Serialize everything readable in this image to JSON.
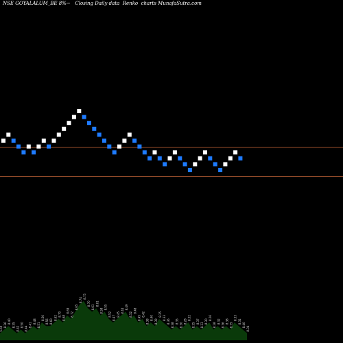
{
  "chart_data": {
    "type": "renko",
    "title": "NSE GOYALALUM_BE 8%~   Closing Daily data  Renko  charts MunafaSutra.com",
    "up_color": "#ffffff",
    "down_color": "#1e7bff",
    "level_line_color": "#a0522d",
    "volume_fill_color": "#0a3a0a",
    "background": "#000000",
    "reference_levels": [
      8.45,
      8.2
    ],
    "bricks": [
      {
        "dir": "up",
        "close": 8.5
      },
      {
        "dir": "up",
        "close": 8.55
      },
      {
        "dir": "down",
        "close": 8.5
      },
      {
        "dir": "down",
        "close": 8.45
      },
      {
        "dir": "down",
        "close": 8.4
      },
      {
        "dir": "up",
        "close": 8.45
      },
      {
        "dir": "down",
        "close": 8.4
      },
      {
        "dir": "up",
        "close": 8.45
      },
      {
        "dir": "up",
        "close": 8.5
      },
      {
        "dir": "down",
        "close": 8.45
      },
      {
        "dir": "up",
        "close": 8.5
      },
      {
        "dir": "up",
        "close": 8.55
      },
      {
        "dir": "up",
        "close": 8.6
      },
      {
        "dir": "up",
        "close": 8.65
      },
      {
        "dir": "up",
        "close": 8.7
      },
      {
        "dir": "up",
        "close": 8.75
      },
      {
        "dir": "down",
        "close": 8.7
      },
      {
        "dir": "down",
        "close": 8.65
      },
      {
        "dir": "down",
        "close": 8.6
      },
      {
        "dir": "down",
        "close": 8.55
      },
      {
        "dir": "down",
        "close": 8.5
      },
      {
        "dir": "down",
        "close": 8.45
      },
      {
        "dir": "down",
        "close": 8.4
      },
      {
        "dir": "up",
        "close": 8.45
      },
      {
        "dir": "up",
        "close": 8.5
      },
      {
        "dir": "up",
        "close": 8.55
      },
      {
        "dir": "down",
        "close": 8.5
      },
      {
        "dir": "down",
        "close": 8.45
      },
      {
        "dir": "down",
        "close": 8.4
      },
      {
        "dir": "down",
        "close": 8.35
      },
      {
        "dir": "up",
        "close": 8.4
      },
      {
        "dir": "down",
        "close": 8.35
      },
      {
        "dir": "down",
        "close": 8.3
      },
      {
        "dir": "up",
        "close": 8.35
      },
      {
        "dir": "up",
        "close": 8.4
      },
      {
        "dir": "down",
        "close": 8.35
      },
      {
        "dir": "down",
        "close": 8.3
      },
      {
        "dir": "down",
        "close": 8.25
      },
      {
        "dir": "up",
        "close": 8.3
      },
      {
        "dir": "up",
        "close": 8.35
      },
      {
        "dir": "up",
        "close": 8.4
      },
      {
        "dir": "down",
        "close": 8.35
      },
      {
        "dir": "down",
        "close": 8.3
      },
      {
        "dir": "down",
        "close": 8.25
      },
      {
        "dir": "up",
        "close": 8.3
      },
      {
        "dir": "up",
        "close": 8.35
      },
      {
        "dir": "up",
        "close": 8.4
      },
      {
        "dir": "down",
        "close": 8.35
      }
    ],
    "volume": {
      "values": [
        2,
        3,
        4,
        3,
        2,
        3,
        2,
        3,
        4,
        3,
        5,
        4,
        4,
        5,
        6,
        5,
        7,
        6,
        8,
        10,
        11,
        9,
        8,
        9,
        7,
        8,
        6,
        5,
        6,
        7,
        8,
        6,
        7,
        5,
        6,
        4,
        5,
        4,
        6,
        5,
        4,
        3,
        4,
        3,
        4,
        5,
        3,
        4,
        3,
        4,
        5,
        3,
        4,
        3,
        4,
        3,
        5,
        4,
        3,
        2
      ],
      "labels": [
        "5.69",
        "8.36",
        "8.40",
        "8.35",
        "8.42",
        "8.50",
        "8.44",
        "8.41",
        "8.48",
        "8.51",
        "8.50",
        "8.56",
        "8.60",
        "8.62",
        "8.70",
        "8.68",
        "8.69",
        "8.72",
        "8.65",
        "8.74",
        "8.75",
        "8.70",
        "8.63",
        "8.61",
        "8.58",
        "8.55",
        "8.52",
        "8.47",
        "8.45",
        "8.44",
        "8.49",
        "8.52",
        "8.48",
        "8.45",
        "8.42",
        "8.38",
        "8.40",
        "8.39",
        "8.35",
        "8.33",
        "8.36",
        "8.38",
        "8.35",
        "8.30",
        "8.28",
        "8.32",
        "8.35",
        "8.37",
        "8.33",
        "8.30",
        "8.26",
        "8.28",
        "8.32",
        "8.36",
        "8.38",
        "8.35",
        "8.33",
        "8.31",
        "8.40",
        "8.34"
      ]
    }
  }
}
